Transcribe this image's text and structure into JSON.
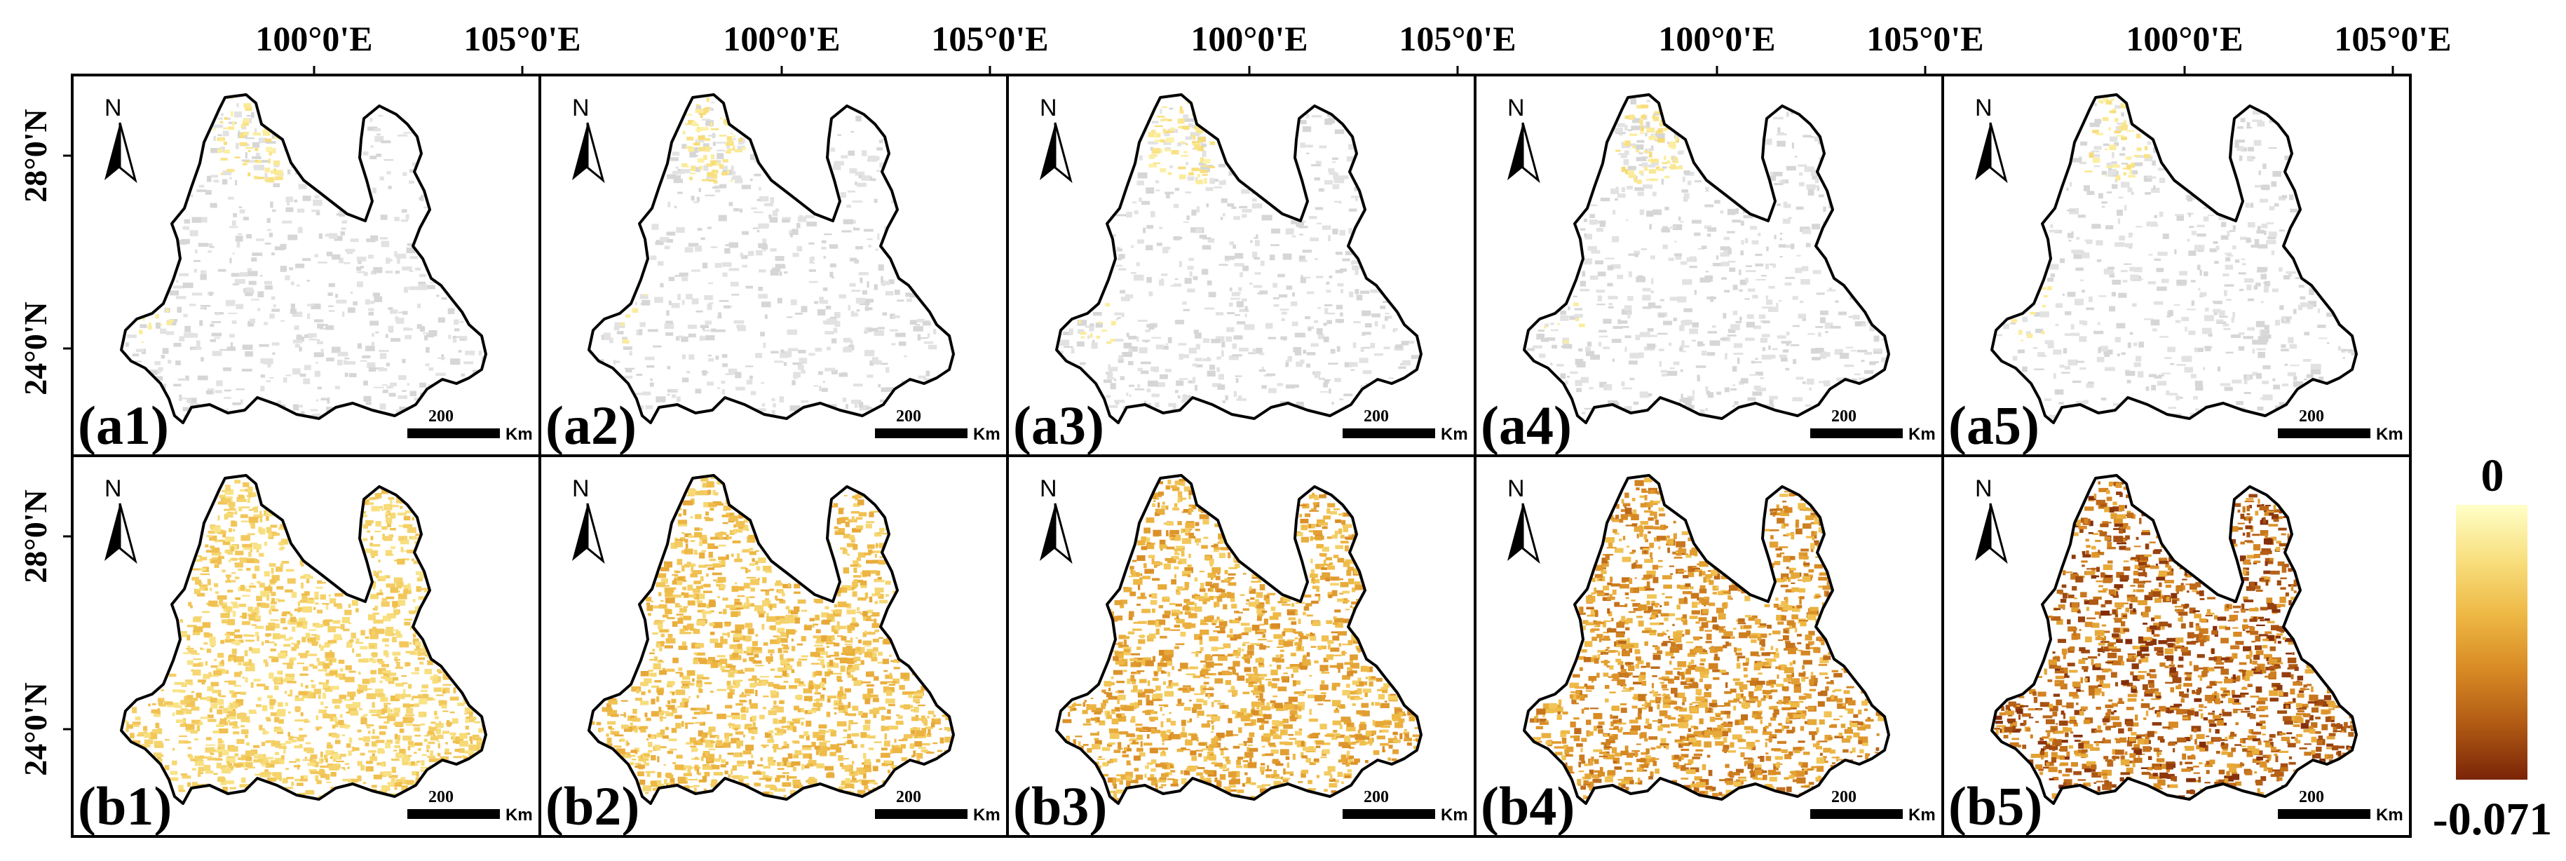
{
  "figure": {
    "top_axis_labels": [
      "100°0'E",
      "105°0'E"
    ],
    "left_axis_labels": [
      "28°0'N",
      "24°0'N"
    ],
    "north_label": "N",
    "scale_value": "200",
    "scale_unit": "Km",
    "colorbar": {
      "max_label": "0",
      "min_label": "-0.071",
      "colors": [
        "#ffffc8",
        "#f8df7e",
        "#eeb844",
        "#d88a24",
        "#b05a14",
        "#7a2408"
      ]
    },
    "rows": [
      {
        "row_id": "a",
        "fill_style": "sparse",
        "panels": [
          {
            "label": "(a1)",
            "intensity": 0.1
          },
          {
            "label": "(a2)",
            "intensity": 0.12
          },
          {
            "label": "(a3)",
            "intensity": 0.12
          },
          {
            "label": "(a4)",
            "intensity": 0.12
          },
          {
            "label": "(a5)",
            "intensity": 0.08
          }
        ]
      },
      {
        "row_id": "b",
        "fill_style": "dense",
        "panels": [
          {
            "label": "(b1)",
            "intensity": 0.3
          },
          {
            "label": "(b2)",
            "intensity": 0.38
          },
          {
            "label": "(b3)",
            "intensity": 0.48
          },
          {
            "label": "(b4)",
            "intensity": 0.6
          },
          {
            "label": "(b5)",
            "intensity": 0.78
          }
        ]
      }
    ]
  }
}
